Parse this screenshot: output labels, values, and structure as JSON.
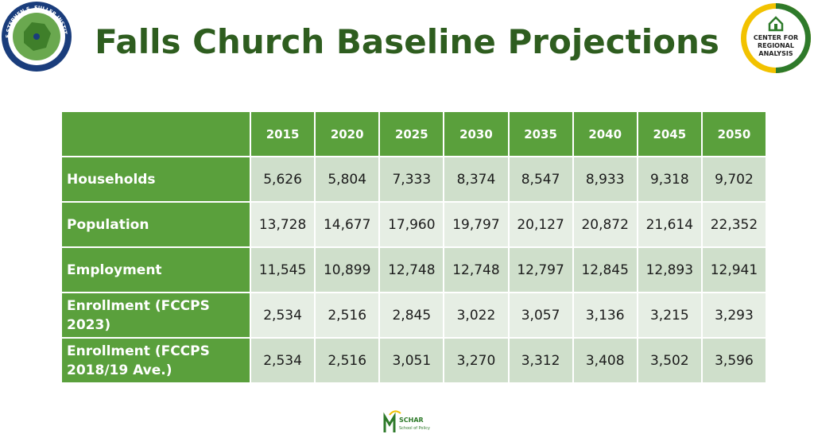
{
  "header": {
    "title": "Falls Church Baseline Projections"
  },
  "logos": {
    "left": {
      "name": "THE STEPHEN S. FULLER INSTITUTE",
      "subtext": "FOR RESEARCH ON THE WASHINGTON REGION'S ECONOMIC FUTURE"
    },
    "right": {
      "line1": "CENTER FOR",
      "line2": "REGIONAL",
      "line3": "ANALYSIS"
    },
    "bottom": {
      "line1": "SCHAR",
      "line2": "School of Policy"
    }
  },
  "table": {
    "columns": [
      "",
      "2015",
      "2020",
      "2025",
      "2030",
      "2035",
      "2040",
      "2045",
      "2050"
    ],
    "rows": [
      {
        "label": "Households",
        "values": [
          "5,626",
          "5,804",
          "7,333",
          "8,374",
          "8,547",
          "8,933",
          "9,318",
          "9,702"
        ]
      },
      {
        "label": "Population",
        "values": [
          "13,728",
          "14,677",
          "17,960",
          "19,797",
          "20,127",
          "20,872",
          "21,614",
          "22,352"
        ]
      },
      {
        "label": "Employment",
        "values": [
          "11,545",
          "10,899",
          "12,748",
          "12,748",
          "12,797",
          "12,845",
          "12,893",
          "12,941"
        ]
      },
      {
        "label": "Enrollment (FCCPS 2023)",
        "values": [
          "2,534",
          "2,516",
          "2,845",
          "3,022",
          "3,057",
          "3,136",
          "3,215",
          "3,293"
        ]
      },
      {
        "label": "Enrollment (FCCPS 2018/19 Ave.)",
        "values": [
          "2,534",
          "2,516",
          "3,051",
          "3,270",
          "3,312",
          "3,408",
          "3,502",
          "3,596"
        ]
      }
    ]
  },
  "colors": {
    "title": "#2e5d1f",
    "header_fill": "#5aa03c",
    "row_odd": "#cfdfcb",
    "row_even": "#e6eee4"
  }
}
